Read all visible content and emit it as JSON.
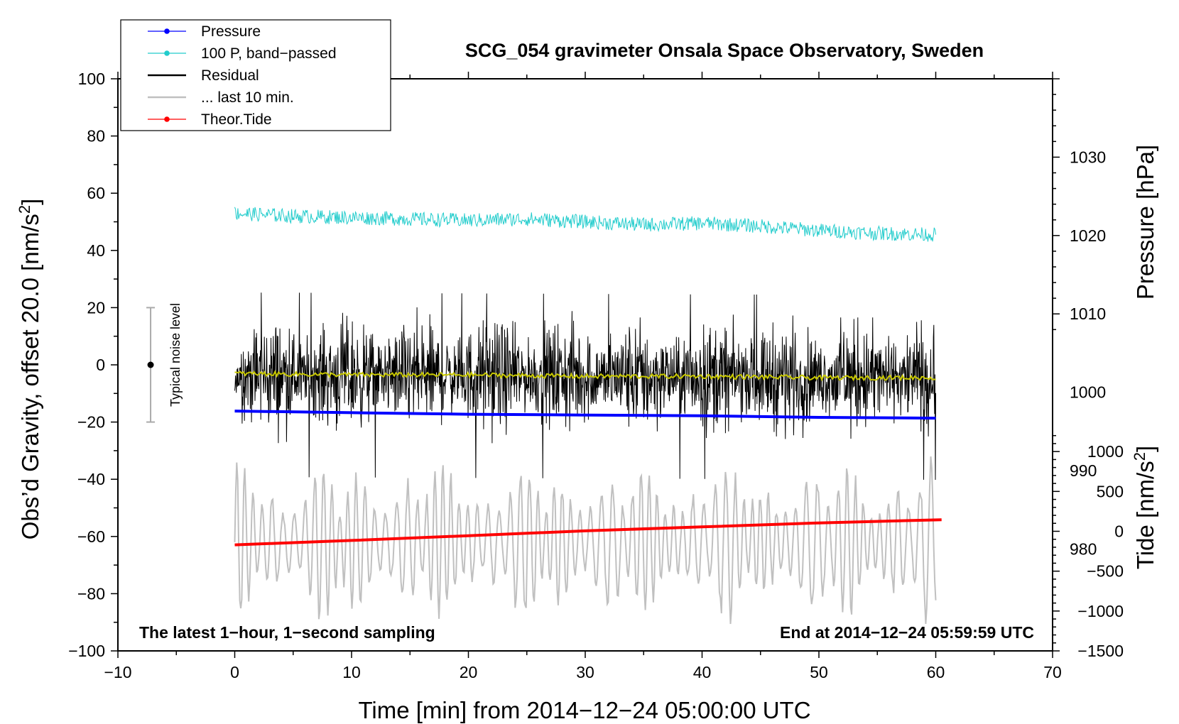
{
  "chart_data": {
    "type": "line",
    "title": "SCG_054 gravimeter Onsala Space Observatory, Sweden",
    "xlabel": "Time [min] from 2014−12−24 05:00:00 UTC",
    "ylabel": "Obs’d Gravity, offset 20.0 [nm/s2]",
    "ylabel_main": "Obs’d Gravity, offset 20.0 [nm/s",
    "ylabel_sup": "2",
    "ylabel_close": "]",
    "xlim": [
      -10,
      70
    ],
    "ylim": [
      -100,
      100
    ],
    "xticks": [
      -10,
      0,
      10,
      20,
      30,
      40,
      50,
      60,
      70
    ],
    "xtick_labels": [
      "−10",
      "0",
      "10",
      "20",
      "30",
      "40",
      "50",
      "60",
      "70"
    ],
    "yticks": [
      -100,
      -80,
      -60,
      -40,
      -20,
      0,
      20,
      40,
      60,
      80,
      100
    ],
    "ytick_labels": [
      "−100",
      "−80",
      "−60",
      "−40",
      "−20",
      "0",
      "20",
      "40",
      "60",
      "80",
      "100"
    ],
    "pressure_axis": {
      "label": "Pressure [hPa]",
      "range": [
        967,
        1040
      ],
      "ticks": [
        980,
        990,
        1000,
        1010,
        1020,
        1030
      ],
      "tick_labels": [
        "980",
        "990",
        "1000",
        "1010",
        "1020",
        "1030"
      ]
    },
    "tide_axis": {
      "label": "Tide [nm/s2]",
      "label_main": "Tide [nm/s",
      "label_sup": "2",
      "label_close": "]",
      "range": [
        -1500,
        1500
      ],
      "ticks": [
        -1500,
        -1000,
        -500,
        0,
        500,
        1000
      ],
      "tick_labels": [
        "−1500",
        "−1000",
        "−500",
        "0",
        "500",
        "1000"
      ]
    },
    "legend": {
      "position": "top-left",
      "entries": [
        {
          "label": "Pressure",
          "color": "#0000ff",
          "marker": true
        },
        {
          "label": "100 P, band−passed",
          "color": "#22cccc",
          "marker": true
        },
        {
          "label": "Residual",
          "color": "#000000",
          "marker": false
        },
        {
          "label": "... last 10 min.",
          "color": "#c0c0c0",
          "marker": false
        },
        {
          "label": "Theor.Tide",
          "color": "#ff0000",
          "marker": true
        }
      ]
    },
    "annotations": {
      "left": "The latest 1−hour, 1−second sampling",
      "right": "End at 2014−12−24 05:59:59 UTC",
      "noise_label": "Typical noise level"
    },
    "noise_bar": {
      "x": -7.2,
      "center": 0,
      "low": -20,
      "high": 20
    },
    "series": [
      {
        "name": "Pressure",
        "axis": "pressure",
        "color": "#0000ff",
        "x": [
          0,
          10,
          20,
          30,
          40,
          50,
          60
        ],
        "values": [
          997.6,
          997.4,
          997.2,
          997.1,
          997.0,
          996.8,
          996.7
        ]
      },
      {
        "name": "100 P, band−passed",
        "axis": "left",
        "color": "#22cccc",
        "x": [
          0,
          5,
          10,
          15,
          20,
          25,
          30,
          35,
          40,
          45,
          50,
          55,
          60
        ],
        "values": [
          53,
          52,
          51.5,
          51,
          50.5,
          51,
          50,
          49,
          49.5,
          48.5,
          47,
          46,
          45.5
        ],
        "noise_amplitude": 2.5
      },
      {
        "name": "Residual",
        "axis": "left",
        "color": "#000000",
        "x": [
          0,
          60
        ],
        "values": [
          -3.5,
          -4.5
        ],
        "noise_amplitude": 14,
        "max_spike": 32,
        "min_spike": -42
      },
      {
        "name": "Residual smoothed",
        "axis": "left",
        "color": "#c8c800",
        "x": [
          0,
          10,
          20,
          30,
          40,
          50,
          60
        ],
        "values": [
          -3,
          -3.5,
          -3.5,
          -4,
          -4,
          -4.5,
          -4.5
        ]
      },
      {
        "name": "... last 10 min.",
        "axis": "left",
        "color": "#c0c0c0",
        "x": [
          0,
          60
        ],
        "values": [
          -62,
          -62
        ],
        "amplitude_range": [
          -93,
          -30
        ]
      },
      {
        "name": "Theor.Tide",
        "axis": "tide",
        "color": "#ff0000",
        "x": [
          0,
          10,
          20,
          30,
          40,
          50,
          60.5
        ],
        "values": [
          -170,
          -115,
          -55,
          5,
          55,
          105,
          145
        ]
      }
    ]
  }
}
